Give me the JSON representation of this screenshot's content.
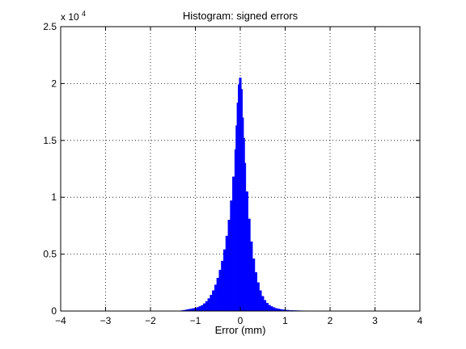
{
  "chart_data": {
    "type": "bar",
    "title": "Histogram: signed errors",
    "xlabel": "Error (mm)",
    "ylabel": "",
    "xlim": [
      -4,
      4
    ],
    "ylim": [
      0,
      25000
    ],
    "x_ticks": [
      "−4",
      "−3",
      "−2",
      "−1",
      "0",
      "1",
      "2",
      "3",
      "4"
    ],
    "y_ticks": [
      "0",
      "0.5",
      "1",
      "1.5",
      "2",
      "2.5"
    ],
    "y_multiplier": "x 10",
    "y_multiplier_exponent": "4",
    "grid": true,
    "bar_color": "#0000ff",
    "bin_width": 0.05,
    "bins": [
      [
        -1.3,
        40
      ],
      [
        -1.25,
        70
      ],
      [
        -1.2,
        110
      ],
      [
        -1.15,
        150
      ],
      [
        -1.1,
        180
      ],
      [
        -1.05,
        220
      ],
      [
        -1.0,
        260
      ],
      [
        -0.95,
        320
      ],
      [
        -0.9,
        400
      ],
      [
        -0.85,
        500
      ],
      [
        -0.8,
        650
      ],
      [
        -0.75,
        850
      ],
      [
        -0.7,
        1100
      ],
      [
        -0.65,
        1400
      ],
      [
        -0.6,
        1800
      ],
      [
        -0.55,
        2300
      ],
      [
        -0.5,
        2900
      ],
      [
        -0.45,
        3600
      ],
      [
        -0.4,
        4400
      ],
      [
        -0.35,
        5400
      ],
      [
        -0.3,
        6600
      ],
      [
        -0.25,
        8000
      ],
      [
        -0.2,
        9700
      ],
      [
        -0.15,
        11800
      ],
      [
        -0.1,
        14200
      ],
      [
        -0.075,
        16300
      ],
      [
        -0.05,
        18300
      ],
      [
        -0.025,
        19900
      ],
      [
        0.0,
        20500
      ],
      [
        0.025,
        19500
      ],
      [
        0.05,
        17000
      ],
      [
        0.075,
        15200
      ],
      [
        0.1,
        13000
      ],
      [
        0.15,
        10500
      ],
      [
        0.2,
        8100
      ],
      [
        0.25,
        6100
      ],
      [
        0.3,
        4600
      ],
      [
        0.35,
        3400
      ],
      [
        0.4,
        2500
      ],
      [
        0.45,
        1800
      ],
      [
        0.5,
        1300
      ],
      [
        0.55,
        950
      ],
      [
        0.6,
        700
      ],
      [
        0.65,
        520
      ],
      [
        0.7,
        400
      ],
      [
        0.75,
        310
      ],
      [
        0.8,
        240
      ],
      [
        0.85,
        190
      ],
      [
        0.9,
        150
      ],
      [
        0.95,
        120
      ],
      [
        1.0,
        100
      ],
      [
        1.05,
        80
      ],
      [
        1.1,
        65
      ],
      [
        1.15,
        55
      ],
      [
        1.2,
        45
      ],
      [
        1.25,
        40
      ],
      [
        1.3,
        35
      ],
      [
        1.35,
        30
      ],
      [
        1.4,
        25
      ],
      [
        1.45,
        22
      ],
      [
        1.5,
        20
      ],
      [
        1.55,
        15
      ],
      [
        1.6,
        12
      ]
    ]
  }
}
